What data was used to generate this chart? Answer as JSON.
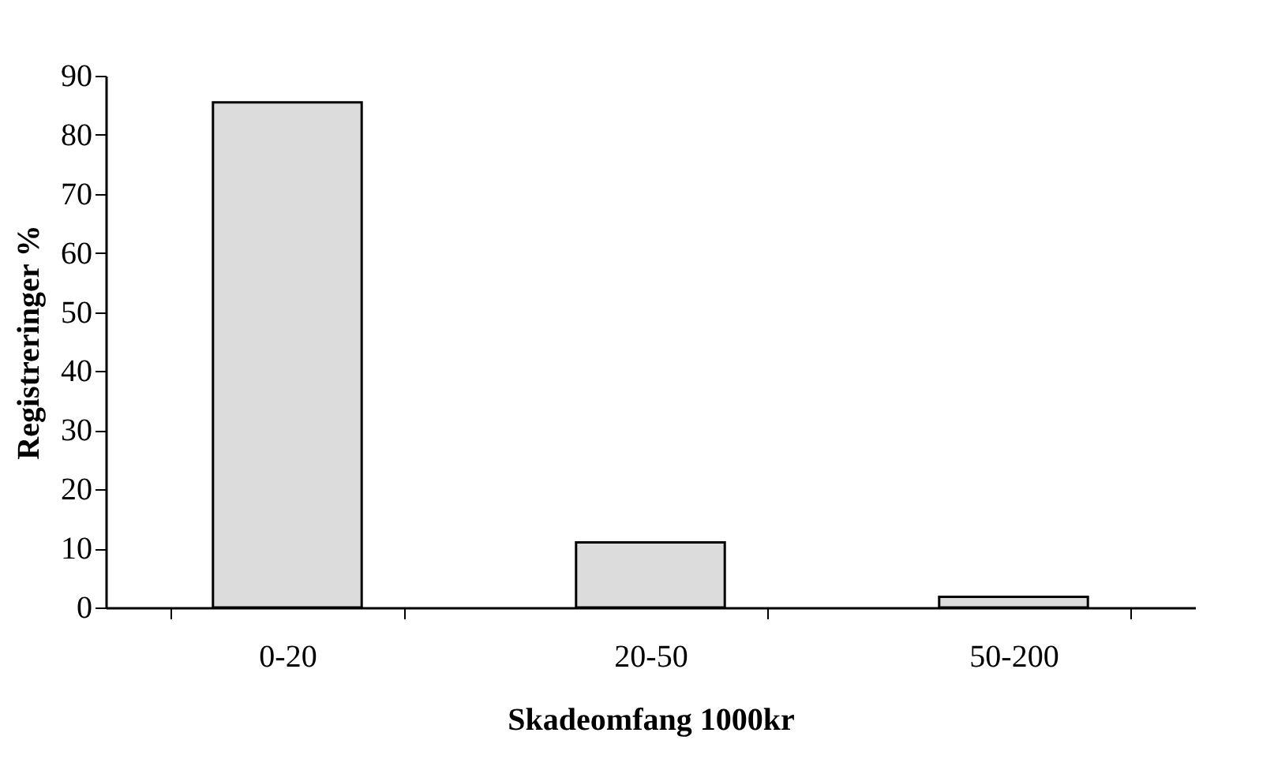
{
  "chart_data": {
    "type": "bar",
    "xlabel": "Skadeomfang 1000kr",
    "ylabel": "Registreringer %",
    "categories": [
      "0-20",
      "20-50",
      "50-200"
    ],
    "values": [
      85.5,
      11,
      1.8
    ],
    "color": "#dcdcdc",
    "ylim": [
      0,
      90
    ],
    "yticks": [
      0,
      10,
      20,
      30,
      40,
      50,
      60,
      70,
      80,
      90
    ],
    "grid": false
  }
}
